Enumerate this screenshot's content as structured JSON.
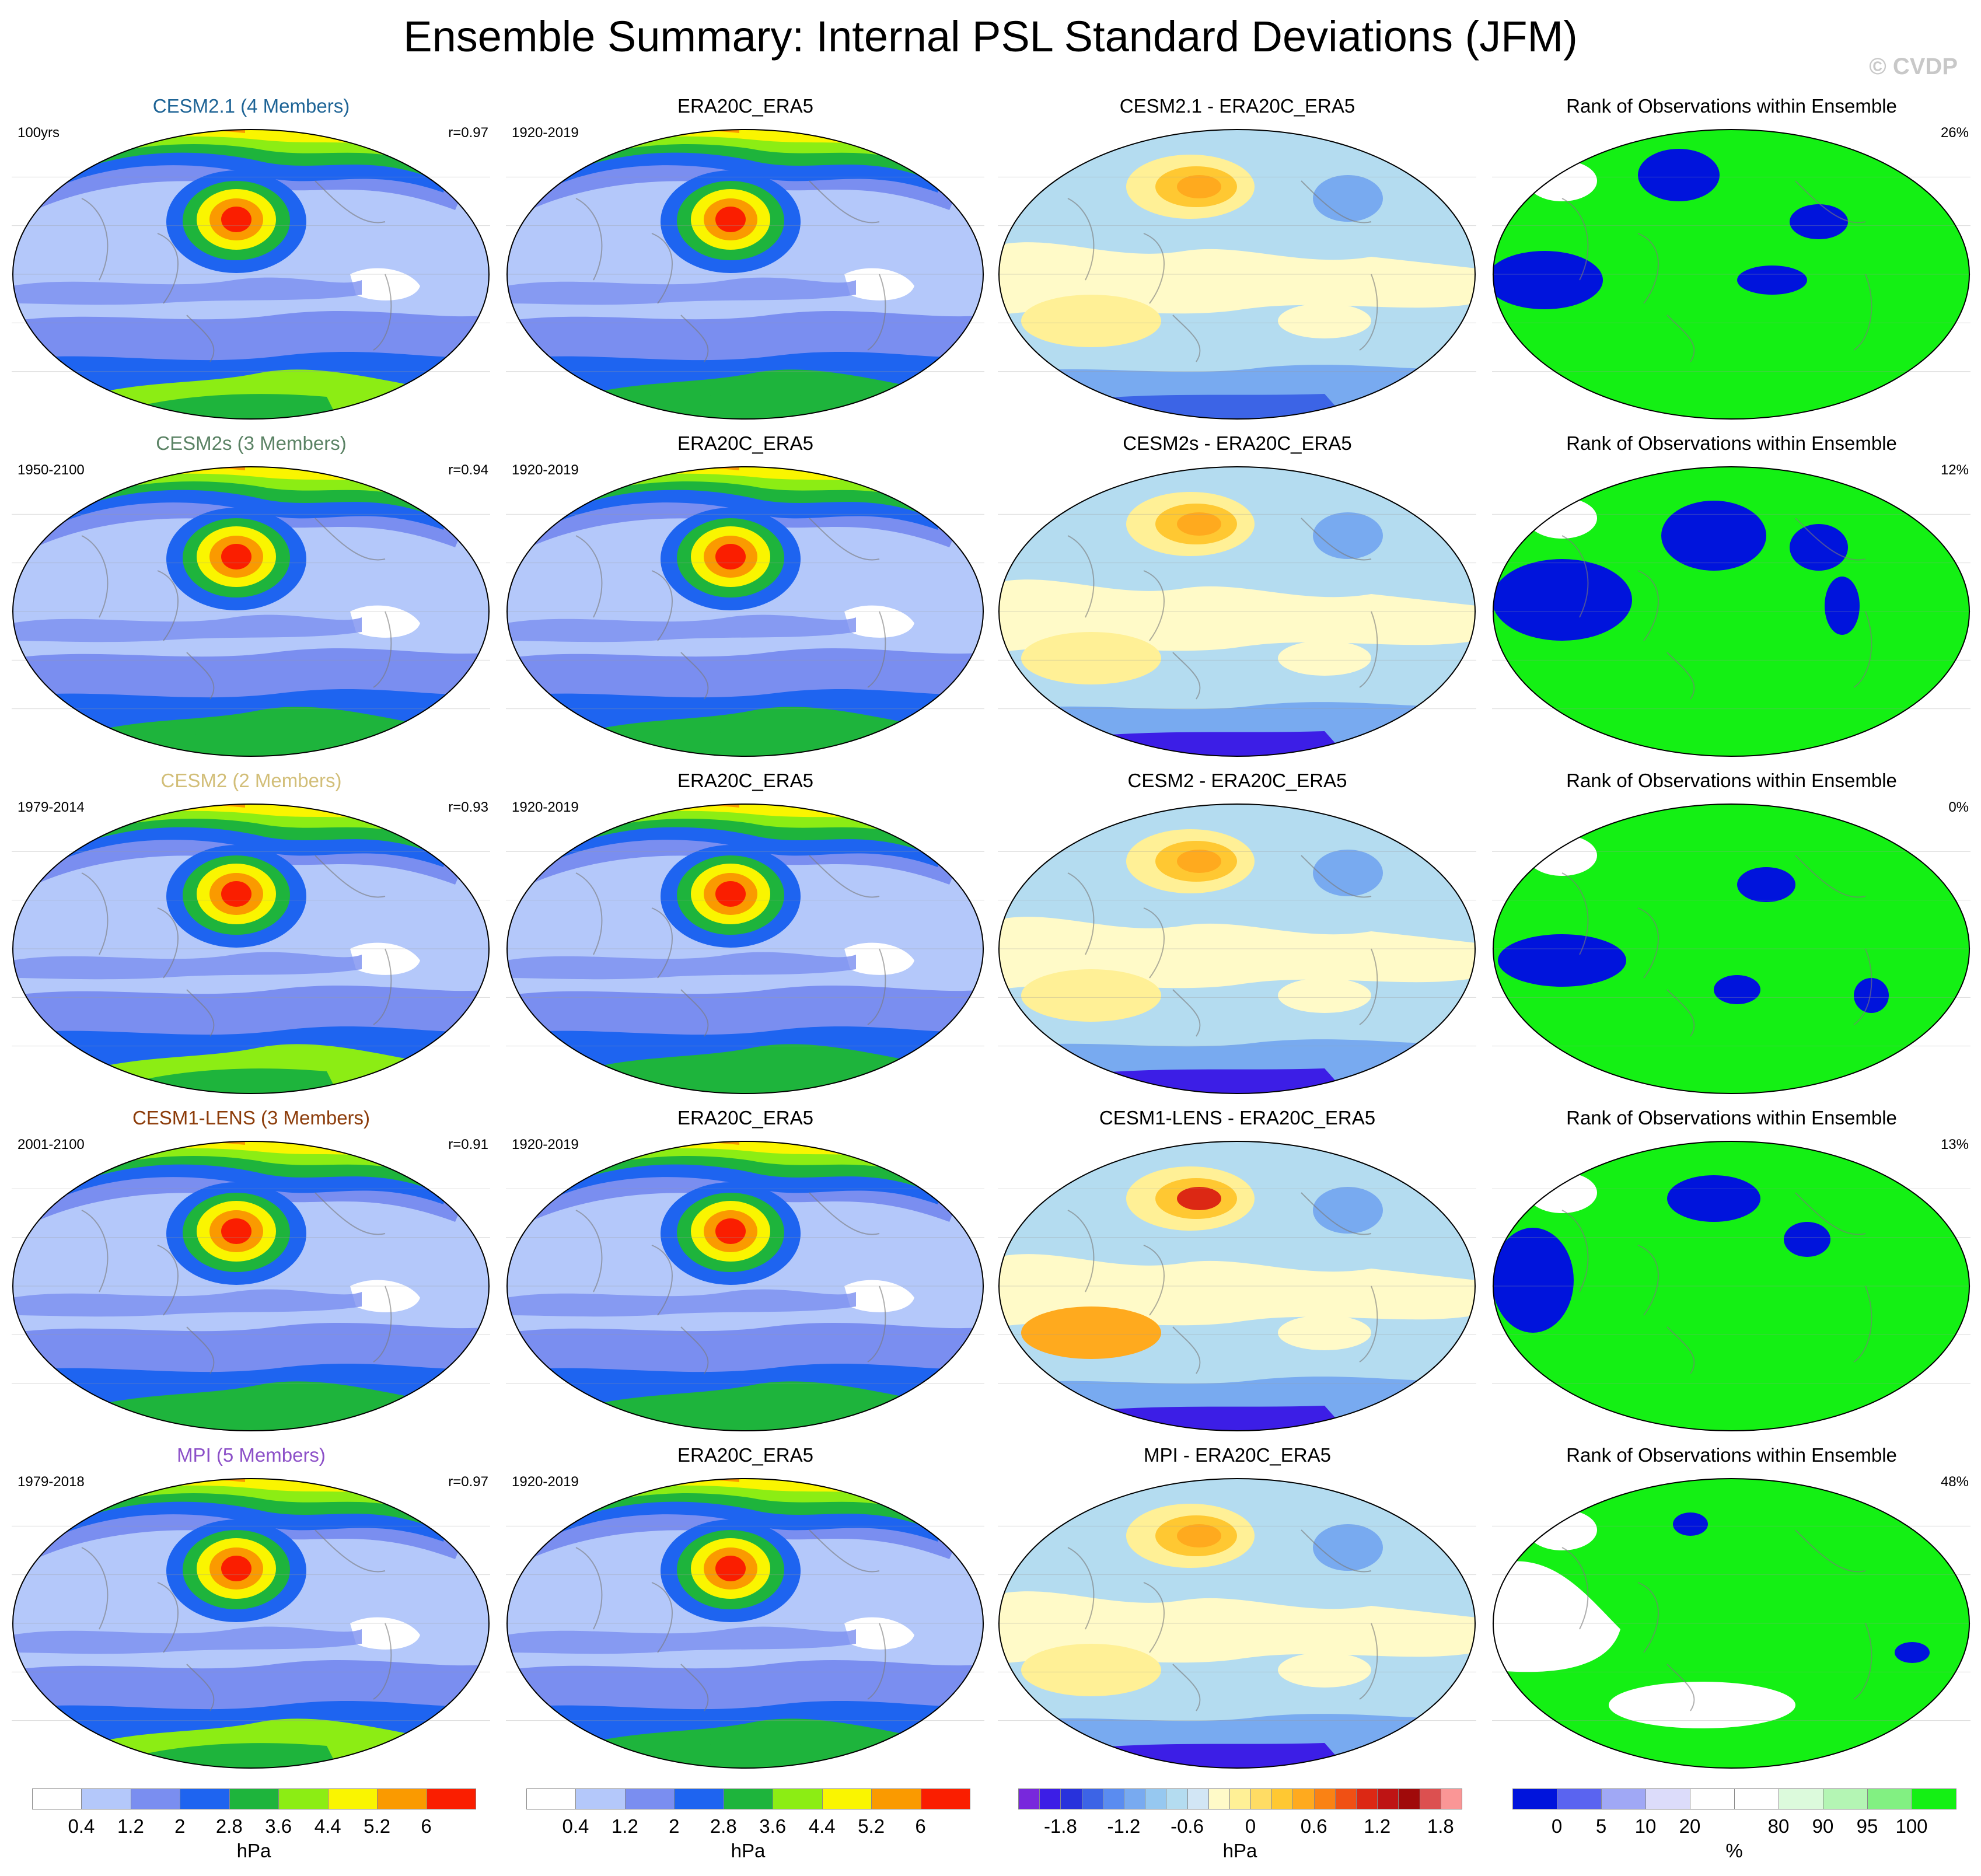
{
  "title": "Ensemble Summary: Internal PSL Standard Deviations (JFM)",
  "credit": "© CVDP",
  "rows": [
    {
      "model": {
        "title": "CESM2.1 (4 Members)",
        "title_color": "#1e6496",
        "left": "100yrs",
        "right": "r=0.97"
      },
      "obs": {
        "title": "ERA20C_ERA5",
        "left": "1920-2019"
      },
      "diff": {
        "title": "CESM2.1 - ERA20C_ERA5"
      },
      "rank": {
        "title": "Rank of Observations within Ensemble",
        "right": "26%"
      }
    },
    {
      "model": {
        "title": "CESM2s (3 Members)",
        "title_color": "#5a8264",
        "left": "1950-2100",
        "right": "r=0.94"
      },
      "obs": {
        "title": "ERA20C_ERA5",
        "left": "1920-2019"
      },
      "diff": {
        "title": "CESM2s - ERA20C_ERA5"
      },
      "rank": {
        "title": "Rank of Observations within Ensemble",
        "right": "12%"
      }
    },
    {
      "model": {
        "title": "CESM2 (2 Members)",
        "title_color": "#d2be78",
        "left": "1979-2014",
        "right": "r=0.93"
      },
      "obs": {
        "title": "ERA20C_ERA5",
        "left": "1920-2019"
      },
      "diff": {
        "title": "CESM2 - ERA20C_ERA5"
      },
      "rank": {
        "title": "Rank of Observations within Ensemble",
        "right": "0%"
      }
    },
    {
      "model": {
        "title": "CESM1-LENS (3 Members)",
        "title_color": "#8c3c0a",
        "left": "2001-2100",
        "right": "r=0.91"
      },
      "obs": {
        "title": "ERA20C_ERA5",
        "left": "1920-2019"
      },
      "diff": {
        "title": "CESM1-LENS - ERA20C_ERA5"
      },
      "rank": {
        "title": "Rank of Observations within Ensemble",
        "right": "13%"
      }
    },
    {
      "model": {
        "title": "MPI (5 Members)",
        "title_color": "#8c50c8",
        "left": "1979-2018",
        "right": "r=0.97"
      },
      "obs": {
        "title": "ERA20C_ERA5",
        "left": "1920-2019"
      },
      "diff": {
        "title": "MPI - ERA20C_ERA5"
      },
      "rank": {
        "title": "Rank of Observations within Ensemble",
        "right": "48%"
      }
    }
  ],
  "colorbars": {
    "std": {
      "unit": "hPa",
      "colors": [
        "#ffffff",
        "#b4c8fa",
        "#7a8ef0",
        "#1e64f0",
        "#1eb43c",
        "#8ced14",
        "#faf500",
        "#fa9a00",
        "#fa1e00"
      ],
      "ticks": [
        "0.4",
        "1.2",
        "2",
        "2.8",
        "3.6",
        "4.4",
        "5.2",
        "6"
      ]
    },
    "diff": {
      "unit": "hPa",
      "colors": [
        "#7828dc",
        "#3c1ee6",
        "#2832dc",
        "#3c64e6",
        "#5a8cf0",
        "#78aaf0",
        "#96c8f0",
        "#b4dcf0",
        "#d2e6f5",
        "#fffac8",
        "#fff096",
        "#ffdc64",
        "#ffc832",
        "#ffaa1e",
        "#fa8214",
        "#f05014",
        "#dc2814",
        "#be1414",
        "#a00a0a",
        "#dc5050",
        "#fa9696"
      ],
      "ticks": [
        "-1.8",
        "-1.2",
        "-0.6",
        "0",
        "0.6",
        "1.2",
        "1.8"
      ]
    },
    "rank": {
      "unit": "%",
      "colors": [
        "#0014dc",
        "#5a64f0",
        "#a0a8f5",
        "#dcdcfa",
        "#ffffff",
        "#ffffff",
        "#dcfadc",
        "#b4f5b4",
        "#82f082",
        "#14f014"
      ],
      "ticks": [
        "0",
        "5",
        "10",
        "20",
        "80",
        "90",
        "95",
        "100"
      ]
    }
  }
}
